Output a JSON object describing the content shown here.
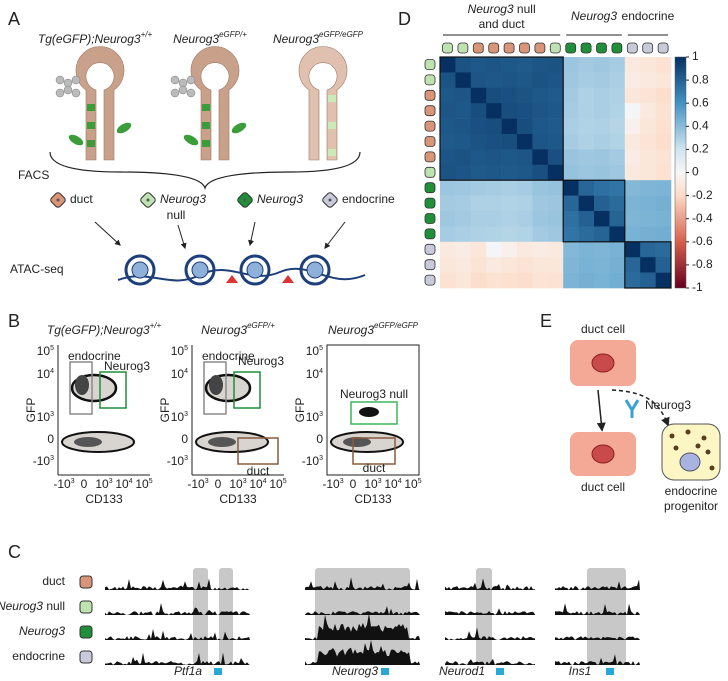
{
  "panels": {
    "a": {
      "letter": "A",
      "genotypes": [
        {
          "main": "Tg(eGFP);Neurog3",
          "sup": "+/+"
        },
        {
          "main": "Neurog3",
          "sup": "eGFP/+"
        },
        {
          "main": "Neurog3",
          "sup": "eGFP/eGFP"
        }
      ],
      "facs": "FACS",
      "populations": [
        {
          "label": "duct",
          "color": "#d9957a"
        },
        {
          "italic": "Neurog3",
          "line2": "null",
          "color": "#bfe3b0"
        },
        {
          "italic": "Neurog3",
          "color": "#1f8f3a"
        },
        {
          "label": "endocrine",
          "color": "#c9c9dc"
        }
      ],
      "atac": "ATAC-seq"
    },
    "b": {
      "letter": "B",
      "y_label": "GFP",
      "x_label": "CD133",
      "y_ticks": [
        {
          "base": "10",
          "exp": "5"
        },
        {
          "base": "10",
          "exp": "4"
        },
        {
          "base": "10",
          "exp": "3"
        },
        {
          "base": "0"
        },
        {
          "base": "-10",
          "exp": "3"
        }
      ],
      "x_ticks": [
        {
          "base": "-10",
          "exp": "3"
        },
        {
          "base": "0"
        },
        {
          "base": "10",
          "exp": "3"
        },
        {
          "base": "10",
          "exp": "4"
        },
        {
          "base": "10",
          "exp": "5"
        }
      ],
      "plots": [
        {
          "title": {
            "main": "Tg(eGFP);Neurog3",
            "sup": "+/+"
          },
          "gates": [
            {
              "label": "endocrine",
              "color": "#8a8a8a"
            },
            {
              "label": "Neurog3",
              "color": "#1f8f3a"
            }
          ]
        },
        {
          "title": {
            "main": "Neurog3",
            "sup": "eGFP/+"
          },
          "gates": [
            {
              "label": "endocrine",
              "color": "#8a8a8a"
            },
            {
              "label": "Neurog3",
              "color": "#1f8f3a"
            },
            {
              "label": "duct",
              "color": "#8b5a3c"
            }
          ]
        },
        {
          "title": {
            "main": "Neurog3",
            "sup": "eGFP/eGFP"
          },
          "gates": [
            {
              "label": "Neurog3 null",
              "color": "#3cb55a"
            },
            {
              "label": "duct",
              "color": "#8b5a3c"
            }
          ]
        }
      ]
    },
    "c": {
      "letter": "C",
      "tracks": [
        {
          "text": "duct"
        },
        {
          "italic": "Neurog3",
          "text": " null"
        },
        {
          "italic": "Neurog3"
        },
        {
          "text": "endocrine"
        }
      ],
      "genes": [
        "Ptf1a",
        "Neurog3",
        "Neurod1",
        "Ins1"
      ]
    },
    "d": {
      "letter": "D",
      "groups": [
        {
          "italic": "Neurog3",
          "text": " null",
          "line2": "and duct"
        },
        {
          "italic": "Neurog3"
        },
        {
          "text": "endocrine"
        }
      ],
      "sample_colors": [
        "#bfe3b0",
        "#bfe3b0",
        "#d9957a",
        "#d9957a",
        "#d9957a",
        "#d9957a",
        "#d9957a",
        "#bfe3b0",
        "#1f8f3a",
        "#1f8f3a",
        "#1f8f3a",
        "#1f8f3a",
        "#c9c9dc",
        "#c9c9dc",
        "#c9c9dc"
      ],
      "clim": [
        -1,
        1
      ],
      "colorbar_ticks": [
        1,
        0.8,
        0.6,
        0.4,
        0.2,
        0,
        -0.2,
        -0.4,
        -0.6,
        -0.8,
        -1
      ],
      "matrix": [
        [
          1,
          0.86,
          0.84,
          0.85,
          0.84,
          0.83,
          0.85,
          0.86,
          0.35,
          0.33,
          0.34,
          0.32,
          -0.1,
          -0.12,
          -0.15
        ],
        [
          0.86,
          1,
          0.85,
          0.84,
          0.85,
          0.84,
          0.86,
          0.85,
          0.34,
          0.32,
          0.33,
          0.31,
          -0.08,
          -0.1,
          -0.12
        ],
        [
          0.84,
          0.85,
          1,
          0.88,
          0.87,
          0.86,
          0.84,
          0.83,
          0.33,
          0.3,
          0.31,
          0.3,
          -0.12,
          -0.14,
          -0.18
        ],
        [
          0.85,
          0.84,
          0.88,
          1,
          0.88,
          0.87,
          0.85,
          0.84,
          0.32,
          0.3,
          0.31,
          0.29,
          0.02,
          -0.1,
          -0.15
        ],
        [
          0.84,
          0.85,
          0.87,
          0.88,
          1,
          0.88,
          0.84,
          0.83,
          0.31,
          0.29,
          0.3,
          0.28,
          -0.05,
          -0.12,
          -0.16
        ],
        [
          0.83,
          0.84,
          0.86,
          0.87,
          0.88,
          1,
          0.85,
          0.84,
          0.32,
          0.3,
          0.31,
          0.29,
          -0.1,
          -0.14,
          -0.18
        ],
        [
          0.85,
          0.86,
          0.84,
          0.85,
          0.84,
          0.85,
          1,
          0.87,
          0.36,
          0.34,
          0.35,
          0.33,
          -0.08,
          -0.12,
          -0.14
        ],
        [
          0.86,
          0.85,
          0.83,
          0.84,
          0.83,
          0.84,
          0.87,
          1,
          0.37,
          0.35,
          0.36,
          0.34,
          -0.1,
          -0.12,
          -0.15
        ],
        [
          0.35,
          0.34,
          0.33,
          0.32,
          0.31,
          0.32,
          0.36,
          0.37,
          1,
          0.78,
          0.74,
          0.72,
          0.42,
          0.43,
          0.44
        ],
        [
          0.33,
          0.32,
          0.3,
          0.3,
          0.29,
          0.3,
          0.34,
          0.35,
          0.78,
          1,
          0.8,
          0.76,
          0.44,
          0.45,
          0.46
        ],
        [
          0.34,
          0.33,
          0.31,
          0.31,
          0.3,
          0.31,
          0.35,
          0.36,
          0.74,
          0.8,
          1,
          0.79,
          0.43,
          0.44,
          0.45
        ],
        [
          0.32,
          0.31,
          0.3,
          0.29,
          0.28,
          0.29,
          0.33,
          0.34,
          0.72,
          0.76,
          0.79,
          1,
          0.45,
          0.46,
          0.47
        ],
        [
          -0.1,
          -0.08,
          -0.12,
          0.02,
          -0.05,
          -0.1,
          -0.08,
          -0.1,
          0.42,
          0.44,
          0.43,
          0.45,
          1,
          0.78,
          0.76
        ],
        [
          -0.12,
          -0.1,
          -0.14,
          -0.1,
          -0.12,
          -0.14,
          -0.12,
          -0.12,
          0.43,
          0.45,
          0.44,
          0.46,
          0.78,
          1,
          0.8
        ],
        [
          -0.15,
          -0.12,
          -0.18,
          -0.15,
          -0.16,
          -0.18,
          -0.14,
          -0.15,
          0.44,
          0.46,
          0.45,
          0.47,
          0.76,
          0.8,
          1
        ]
      ]
    },
    "e": {
      "letter": "E",
      "top_cell": "duct cell",
      "factor": "Neurog3",
      "bottom_cell": "duct cell",
      "progenitor": [
        "endocrine",
        "progenitor"
      ]
    }
  }
}
